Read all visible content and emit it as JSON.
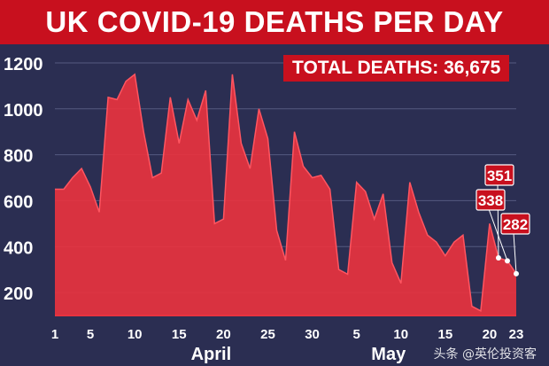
{
  "title": "UK COVID-19 DEATHS PER DAY",
  "total_label": "TOTAL DEATHS: 36,675",
  "watermark": "头条 @英伦投资客",
  "colors": {
    "background": "#2b2e52",
    "title_bar": "#c8101e",
    "area": "#e8333f",
    "grid": "#555a80",
    "label_box": "#c8101e"
  },
  "chart_data": {
    "type": "area",
    "title": "UK COVID-19 DEATHS PER DAY",
    "x_start_day": "1",
    "ylim": [
      100,
      1250
    ],
    "y_ticks": [
      200,
      400,
      600,
      800,
      1000,
      1200
    ],
    "x_tick_labels": [
      "1",
      "5",
      "10",
      "15",
      "20",
      "25",
      "30",
      "5",
      "10",
      "15",
      "20",
      "23"
    ],
    "month_labels": [
      {
        "label": "April",
        "under_tick": "20"
      },
      {
        "label": "May",
        "under_tick": "10"
      }
    ],
    "grid": "horizontal",
    "x": [
      "Apr 1",
      "Apr 2",
      "Apr 3",
      "Apr 4",
      "Apr 5",
      "Apr 6",
      "Apr 7",
      "Apr 8",
      "Apr 9",
      "Apr 10",
      "Apr 11",
      "Apr 12",
      "Apr 13",
      "Apr 14",
      "Apr 15",
      "Apr 16",
      "Apr 17",
      "Apr 18",
      "Apr 19",
      "Apr 20",
      "Apr 21",
      "Apr 22",
      "Apr 23",
      "Apr 24",
      "Apr 25",
      "Apr 26",
      "Apr 27",
      "Apr 28",
      "Apr 29",
      "Apr 30",
      "May 1",
      "May 2",
      "May 3",
      "May 4",
      "May 5",
      "May 6",
      "May 7",
      "May 8",
      "May 9",
      "May 10",
      "May 11",
      "May 12",
      "May 13",
      "May 14",
      "May 15",
      "May 16",
      "May 17",
      "May 18",
      "May 19",
      "May 20",
      "May 21",
      "May 22",
      "May 23"
    ],
    "values": [
      650,
      650,
      700,
      740,
      660,
      550,
      1050,
      1040,
      1120,
      1150,
      900,
      700,
      720,
      1050,
      850,
      1040,
      950,
      1080,
      500,
      520,
      1150,
      850,
      740,
      1000,
      870,
      470,
      340,
      900,
      750,
      700,
      710,
      650,
      300,
      280,
      680,
      640,
      520,
      630,
      330,
      240,
      680,
      550,
      450,
      420,
      360,
      420,
      450,
      140,
      120,
      500,
      351,
      338,
      282
    ],
    "annotations": [
      {
        "x": "May 21",
        "value": 351,
        "label": "351"
      },
      {
        "x": "May 22",
        "value": 338,
        "label": "338"
      },
      {
        "x": "May 23",
        "value": 282,
        "label": "282"
      }
    ]
  }
}
